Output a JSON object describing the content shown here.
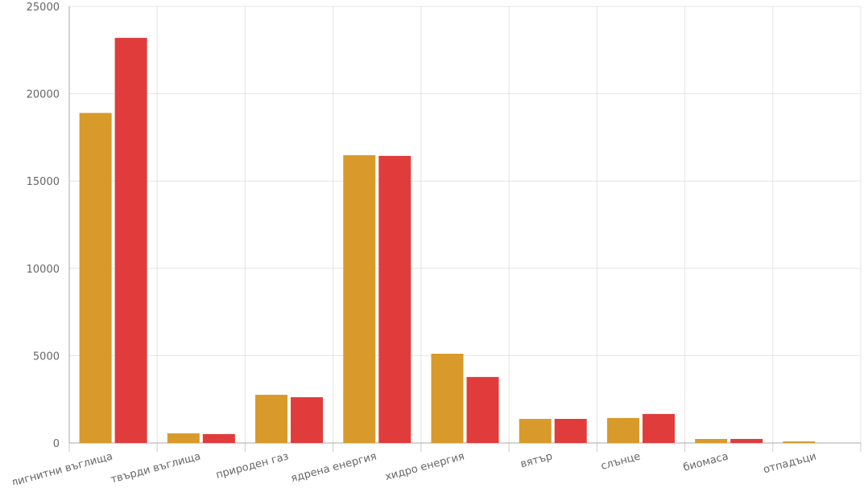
{
  "chart_data": {
    "type": "bar",
    "categories": [
      "лигнитни въглища",
      "твърди въглища",
      "природен газ",
      "ядрена енергия",
      "хидро енергия",
      "вятър",
      "слънце",
      "биомаса",
      "отпадъци"
    ],
    "series": [
      {
        "color": "#d79a2b",
        "values": [
          18900,
          550,
          2760,
          16480,
          5110,
          1380,
          1430,
          230,
          90
        ]
      },
      {
        "color": "#e03c3c",
        "values": [
          23200,
          510,
          2620,
          16440,
          3780,
          1380,
          1660,
          230,
          0
        ]
      }
    ],
    "ylim": [
      0,
      25000
    ],
    "yticks": [
      0,
      5000,
      10000,
      15000,
      20000,
      25000
    ],
    "grid": true
  }
}
